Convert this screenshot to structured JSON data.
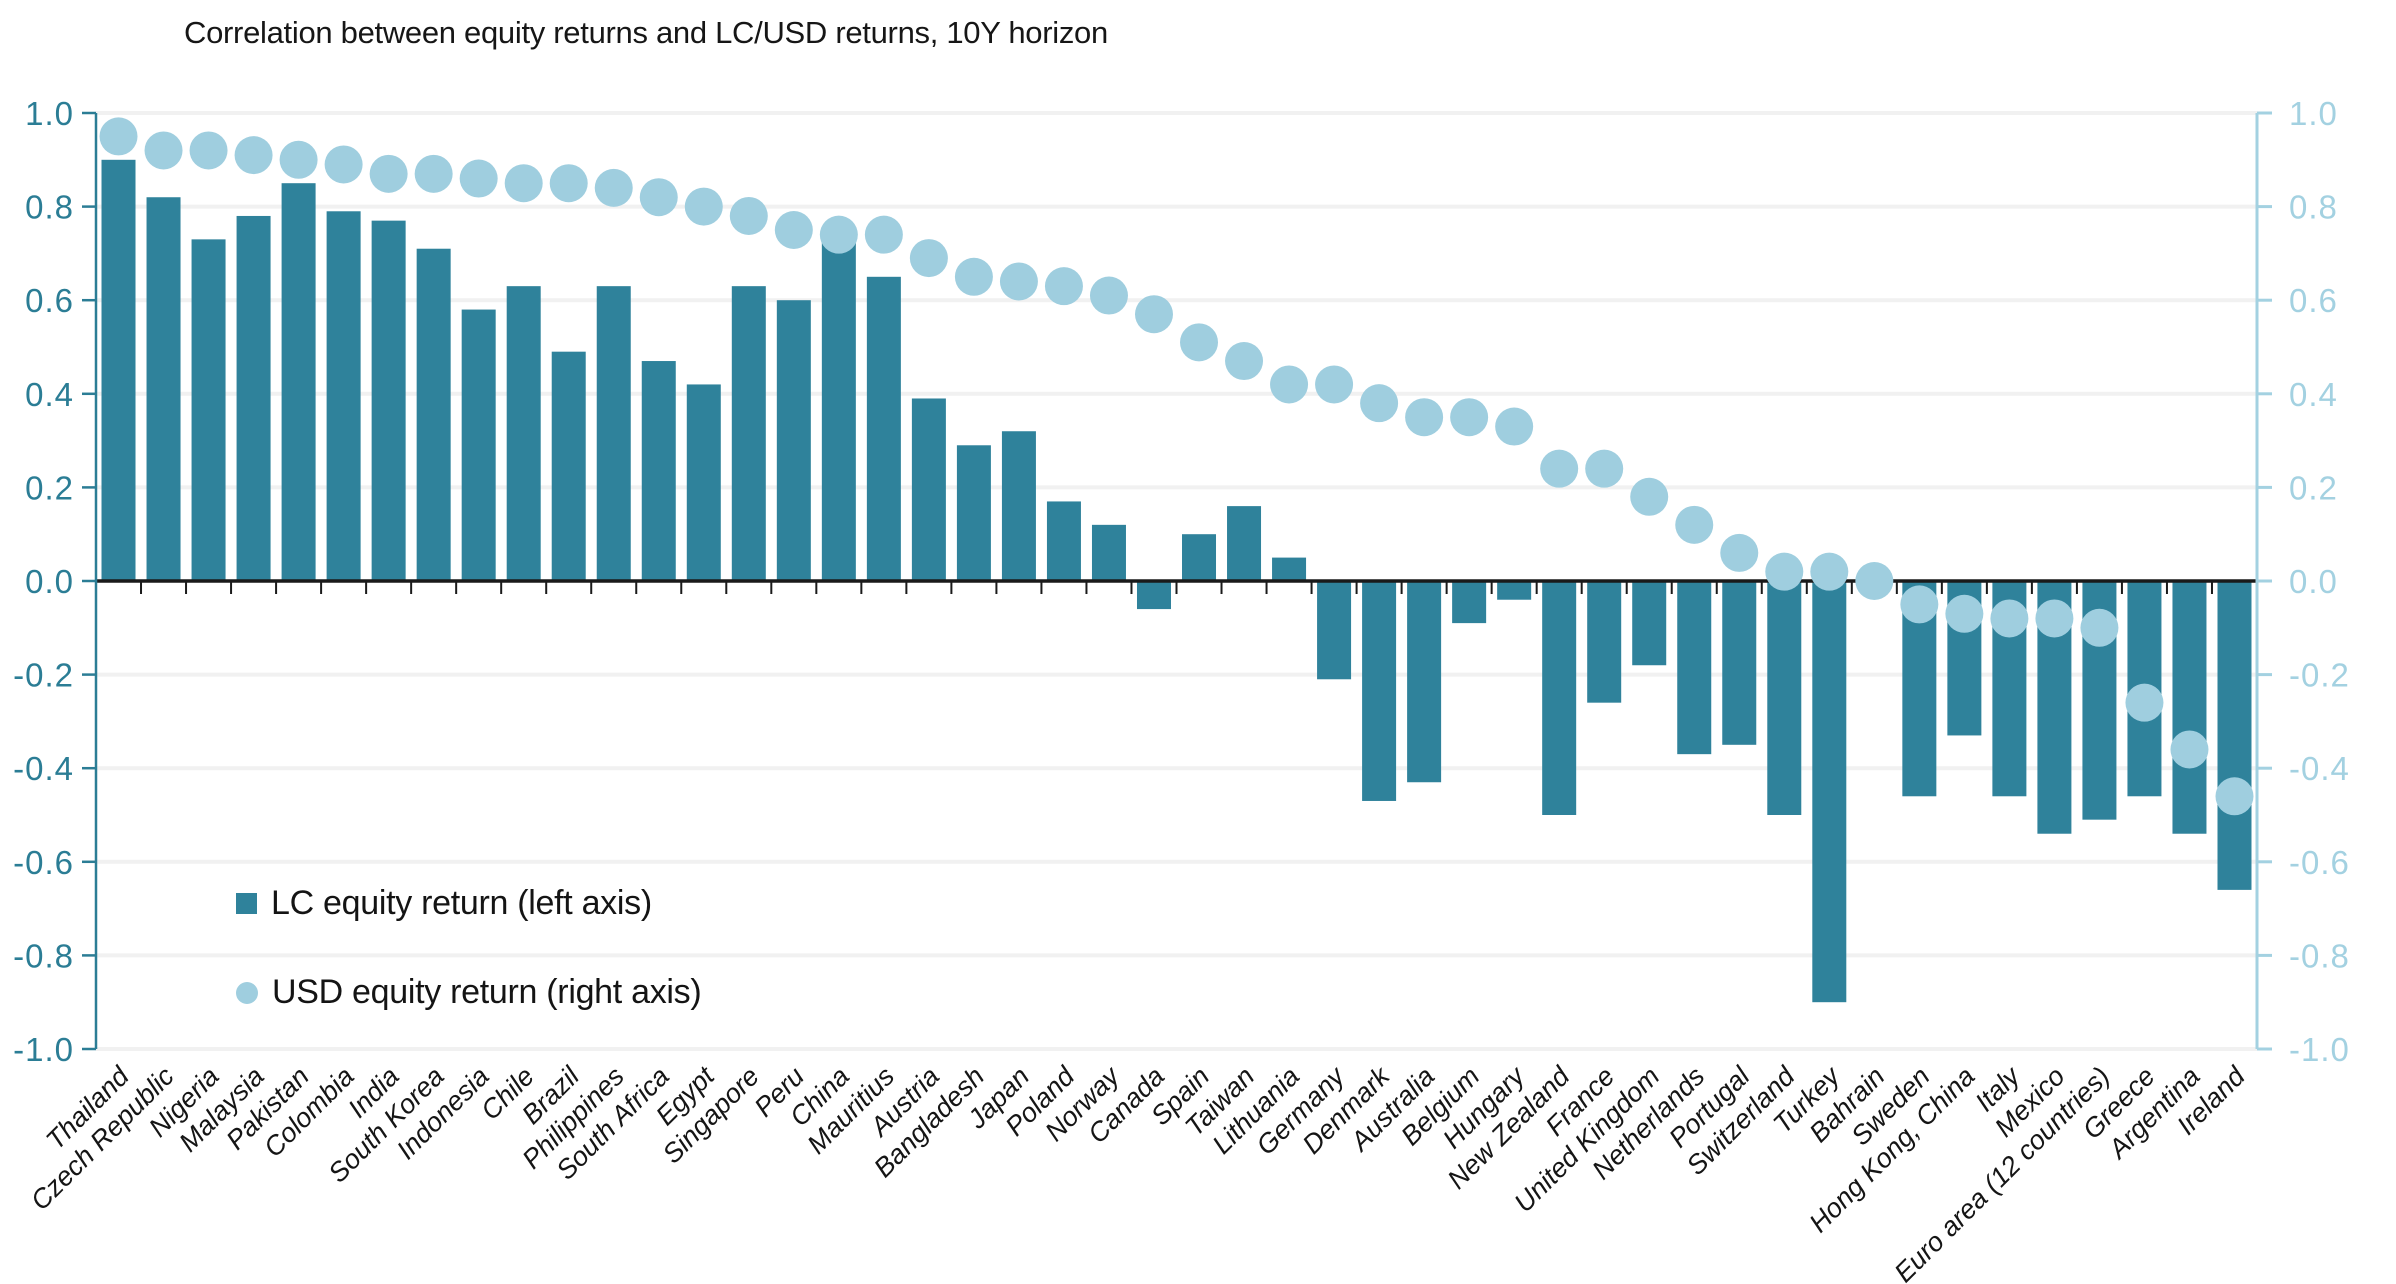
{
  "chart_data": {
    "type": "combo-bar-scatter",
    "title": "Correlation between equity returns and LC/USD returns, 10Y horizon",
    "categories": [
      "Thailand",
      "Czech Republic",
      "Nigeria",
      "Malaysia",
      "Pakistan",
      "Colombia",
      "India",
      "South Korea",
      "Indonesia",
      "Chile",
      "Brazil",
      "Philippines",
      "South Africa",
      "Egypt",
      "Singapore",
      "Peru",
      "China",
      "Mauritius",
      "Austria",
      "Bangladesh",
      "Japan",
      "Poland",
      "Norway",
      "Canada",
      "Spain",
      "Taiwan",
      "Lithuania",
      "Germany",
      "Denmark",
      "Australia",
      "Belgium",
      "Hungary",
      "New Zealand",
      "France",
      "United Kingdom",
      "Netherlands",
      "Portugal",
      "Switzerland",
      "Turkey",
      "Bahrain",
      "Sweden",
      "Hong Kong, China",
      "Italy",
      "Mexico",
      "Euro area (12 countries)",
      "Greece",
      "Argentina",
      "Ireland"
    ],
    "series": [
      {
        "name": "LC equity return (left axis)",
        "type": "bar",
        "axis": "left",
        "marker": "square",
        "color": "#2F829B",
        "values": [
          0.9,
          0.82,
          0.73,
          0.78,
          0.85,
          0.79,
          0.77,
          0.71,
          0.58,
          0.63,
          0.49,
          0.63,
          0.47,
          0.42,
          0.63,
          0.6,
          0.74,
          0.65,
          0.39,
          0.29,
          0.32,
          0.17,
          0.12,
          -0.06,
          0.1,
          0.16,
          0.05,
          -0.21,
          -0.47,
          -0.43,
          -0.09,
          -0.04,
          -0.5,
          -0.26,
          -0.18,
          -0.37,
          -0.35,
          -0.5,
          -0.9,
          0.0,
          -0.46,
          -0.33,
          -0.46,
          -0.54,
          -0.51,
          -0.46,
          -0.54,
          -0.66
        ]
      },
      {
        "name": "USD equity return (right axis)",
        "type": "scatter",
        "axis": "right",
        "marker": "circle",
        "color": "#9FCEDF",
        "values": [
          0.95,
          0.92,
          0.92,
          0.91,
          0.9,
          0.89,
          0.87,
          0.87,
          0.86,
          0.85,
          0.85,
          0.84,
          0.82,
          0.8,
          0.78,
          0.75,
          0.74,
          0.74,
          0.69,
          0.65,
          0.64,
          0.63,
          0.61,
          0.57,
          0.51,
          0.47,
          0.42,
          0.42,
          0.38,
          0.35,
          0.35,
          0.33,
          0.24,
          0.24,
          0.18,
          0.12,
          0.06,
          0.02,
          0.02,
          0.0,
          -0.05,
          -0.07,
          -0.08,
          -0.08,
          -0.1,
          -0.26,
          -0.36,
          -0.46
        ]
      }
    ],
    "left_axis": {
      "ticks": [
        1.0,
        0.8,
        0.6,
        0.4,
        0.2,
        0.0,
        -0.2,
        -0.4,
        -0.6,
        -0.8,
        -1.0
      ],
      "range": [
        -1.0,
        1.0
      ],
      "color": "#2B7D95"
    },
    "right_axis": {
      "ticks": [
        1.0,
        0.8,
        0.6,
        0.4,
        0.2,
        0.0,
        -0.2,
        -0.4,
        -0.6,
        -0.8,
        -1.0
      ],
      "range": [
        -1.0,
        1.0
      ],
      "color": "#A3D1E1"
    },
    "grid": true,
    "gridline_color": "#f1f1f1",
    "zero_line_color": "#1a1a1a",
    "x_label_color": "#151515",
    "legend_position": "lower-left"
  },
  "legend": {
    "items": [
      {
        "label": "LC equity return (left axis)",
        "marker": "square",
        "color": "#2F829B"
      },
      {
        "label": "USD equity return (right axis)",
        "marker": "circle",
        "color": "#9FCEDF"
      }
    ]
  }
}
